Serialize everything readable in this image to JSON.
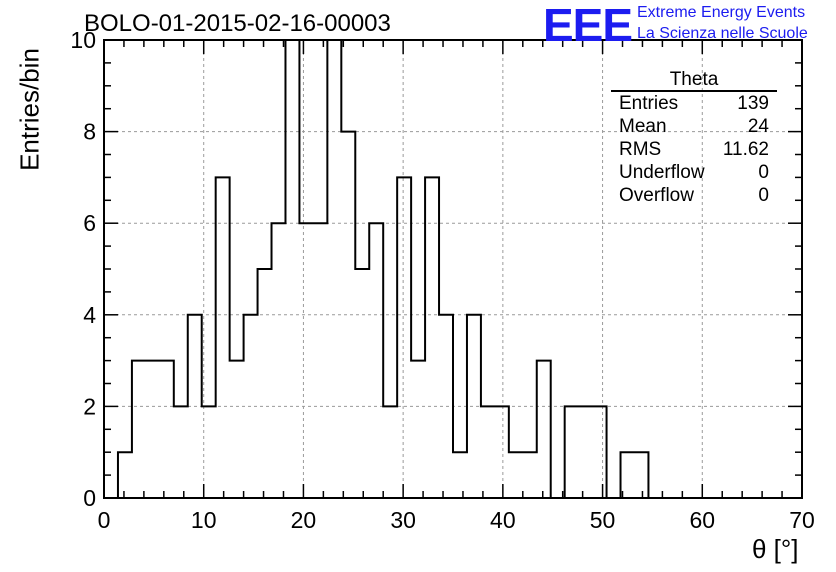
{
  "chart_data": {
    "type": "histogram",
    "title": "BOLO-01-2015-02-16-00003",
    "xlabel": "θ [°]",
    "ylabel": "Entries/bin",
    "xlim": [
      0,
      70
    ],
    "ylim": [
      0,
      10
    ],
    "x_ticks": [
      0,
      10,
      20,
      30,
      40,
      50,
      60,
      70
    ],
    "y_ticks": [
      0,
      2,
      4,
      6,
      8,
      10
    ],
    "grid": true,
    "bin_width": 1.4,
    "bin_start": 0,
    "values": [
      0,
      1,
      3,
      3,
      3,
      2,
      4,
      2,
      7,
      3,
      4,
      5,
      6,
      10,
      6,
      6,
      10,
      8,
      5,
      6,
      2,
      7,
      3,
      7,
      4,
      1,
      4,
      2,
      2,
      1,
      1,
      3,
      0,
      2,
      2,
      2,
      0,
      1,
      1,
      0,
      0,
      0,
      0,
      0,
      0,
      0,
      0,
      0,
      0,
      0
    ],
    "stats": {
      "name": "Theta",
      "rows": [
        {
          "label": "Entries",
          "value": "139"
        },
        {
          "label": "Mean",
          "value": "24"
        },
        {
          "label": "RMS",
          "value": "11.62"
        },
        {
          "label": "Underflow",
          "value": "0"
        },
        {
          "label": "Overflow",
          "value": "0"
        }
      ]
    }
  },
  "logo": {
    "mark": "EEE",
    "line1": "Extreme Energy Events",
    "line2": "La Scienza nelle Scuole",
    "color": "#1c1cf0"
  }
}
